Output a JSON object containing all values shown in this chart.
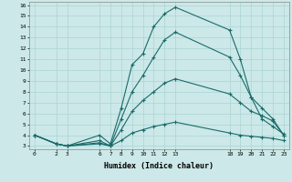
{
  "xlabel": "Humidex (Indice chaleur)",
  "xlim": [
    -0.5,
    23.5
  ],
  "ylim": [
    2.7,
    16.3
  ],
  "xticks": [
    0,
    2,
    3,
    6,
    7,
    8,
    9,
    10,
    11,
    12,
    13,
    18,
    19,
    20,
    21,
    22,
    23
  ],
  "yticks": [
    3,
    4,
    5,
    6,
    7,
    8,
    9,
    10,
    11,
    12,
    13,
    14,
    15,
    16
  ],
  "bg_color": "#cce8e8",
  "line_color": "#1a6b6b",
  "grid_color": "#aad4d4",
  "lines": [
    {
      "x": [
        0,
        2,
        3,
        6,
        7,
        8,
        9,
        10,
        11,
        12,
        13,
        18,
        19,
        20,
        21,
        22,
        23
      ],
      "y": [
        4,
        3.2,
        3.0,
        4.0,
        3.2,
        6.5,
        10.5,
        11.5,
        14.0,
        15.2,
        15.8,
        13.7,
        11.0,
        7.5,
        5.5,
        4.8,
        4.1
      ]
    },
    {
      "x": [
        0,
        2,
        3,
        6,
        7,
        8,
        9,
        10,
        11,
        12,
        13,
        18,
        19,
        20,
        21,
        22,
        23
      ],
      "y": [
        4,
        3.2,
        3.0,
        3.5,
        3.0,
        5.5,
        8.0,
        9.5,
        11.2,
        12.8,
        13.5,
        11.2,
        9.5,
        7.5,
        6.5,
        5.5,
        4.0
      ]
    },
    {
      "x": [
        0,
        2,
        3,
        6,
        7,
        8,
        9,
        10,
        11,
        12,
        13,
        18,
        19,
        20,
        21,
        22,
        23
      ],
      "y": [
        4,
        3.2,
        3.0,
        3.3,
        3.0,
        4.5,
        6.2,
        7.2,
        8.0,
        8.8,
        9.2,
        7.8,
        7.0,
        6.2,
        5.8,
        5.3,
        4.0
      ]
    },
    {
      "x": [
        0,
        2,
        3,
        6,
        7,
        8,
        9,
        10,
        11,
        12,
        13,
        18,
        19,
        20,
        21,
        22,
        23
      ],
      "y": [
        4,
        3.2,
        3.0,
        3.2,
        3.0,
        3.5,
        4.2,
        4.5,
        4.8,
        5.0,
        5.2,
        4.2,
        4.0,
        3.9,
        3.8,
        3.7,
        3.5
      ]
    }
  ]
}
